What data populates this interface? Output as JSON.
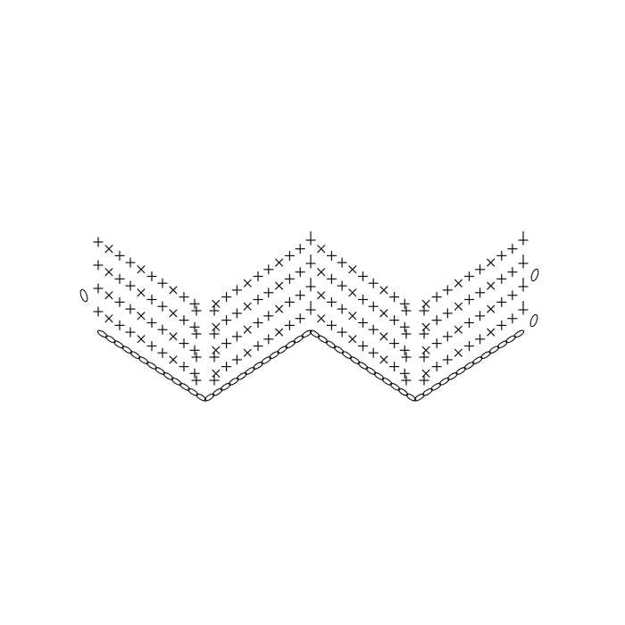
{
  "diagram": {
    "kind": "crochet-chart",
    "pattern": "chevron-ripple",
    "rows": 4,
    "symbols": [
      {
        "name": "chain",
        "glyph": "oval"
      },
      {
        "name": "single-crochet",
        "glyph": "plus"
      },
      {
        "name": "decrease",
        "glyph": "x"
      },
      {
        "name": "increase",
        "glyph": "tall-plus"
      }
    ],
    "colors": {
      "ink": "#111111",
      "background": "#ffffff"
    }
  }
}
